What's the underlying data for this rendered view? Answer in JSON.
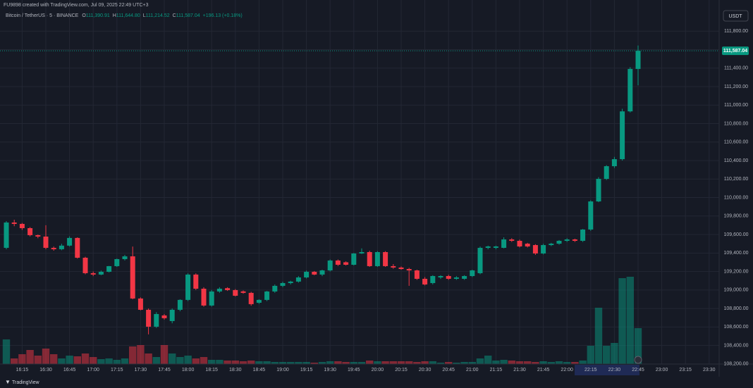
{
  "chart_data": {
    "type": "candlestick",
    "title": "FU9898 created with TradingView.com, Jul 09, 2025 22:49 UTC+3",
    "header": {
      "symbol": "Bitcoin / TetherUS · 5 · BINANCE",
      "o_label": "O",
      "o": "111,390.91",
      "h_label": "H",
      "h": "111,644.80",
      "l_label": "L",
      "l": "111,214.52",
      "c_label": "C",
      "c": "111,587.04",
      "change": "+196.13 (+0.18%)"
    },
    "currency": "USDT",
    "brand": "TradingView",
    "last_label": "111,587.04",
    "up_color": "#089981",
    "down_color": "#f23645",
    "grid": true,
    "ylim": [
      108100,
      112030
    ],
    "yticks": [
      {
        "value": 108200,
        "label": "108,200.00"
      },
      {
        "value": 108400,
        "label": "108,400.00"
      },
      {
        "value": 108600,
        "label": "108,600.00"
      },
      {
        "value": 108800,
        "label": "108,800.00"
      },
      {
        "value": 109000,
        "label": "109,000.00"
      },
      {
        "value": 109200,
        "label": "109,200.00"
      },
      {
        "value": 109400,
        "label": "109,400.00"
      },
      {
        "value": 109600,
        "label": "109,600.00"
      },
      {
        "value": 109800,
        "label": "109,800.00"
      },
      {
        "value": 110000,
        "label": "110,000.00"
      },
      {
        "value": 110200,
        "label": "110,200.00"
      },
      {
        "value": 110400,
        "label": "110,400.00"
      },
      {
        "value": 110600,
        "label": "110,600.00"
      },
      {
        "value": 110800,
        "label": "110,800.00"
      },
      {
        "value": 111000,
        "label": "111,000.00"
      },
      {
        "value": 111200,
        "label": "111,200.00"
      },
      {
        "value": 111400,
        "label": "111,400.00"
      },
      {
        "value": 111600,
        "label": "111,600.00"
      },
      {
        "value": 111800,
        "label": "111,800.00"
      }
    ],
    "xticks": [
      "16:15",
      "16:30",
      "16:45",
      "17:00",
      "17:15",
      "17:30",
      "17:45",
      "18:00",
      "18:15",
      "18:30",
      "18:45",
      "19:00",
      "19:15",
      "19:30",
      "19:45",
      "20:00",
      "20:15",
      "20:30",
      "20:45",
      "21:00",
      "21:15",
      "21:30",
      "21:45",
      "22:00",
      "22:15",
      "22:30",
      "22:45",
      "23:00",
      "23:15",
      "23:30"
    ],
    "ohlc": [
      [
        109456,
        109745,
        109440,
        109730
      ],
      [
        109730,
        109760,
        109690,
        109715
      ],
      [
        109715,
        109725,
        109650,
        109669
      ],
      [
        109669,
        109680,
        109580,
        109593
      ],
      [
        109593,
        109600,
        109560,
        109578
      ],
      [
        109578,
        109700,
        109440,
        109456
      ],
      [
        109456,
        109470,
        109425,
        109441
      ],
      [
        109441,
        109500,
        109430,
        109480
      ],
      [
        109480,
        109580,
        109470,
        109563
      ],
      [
        109563,
        109570,
        109340,
        109349
      ],
      [
        109349,
        109360,
        109170,
        109182
      ],
      [
        109182,
        109200,
        109150,
        109167
      ],
      [
        109167,
        109210,
        109160,
        109197
      ],
      [
        109197,
        109260,
        109190,
        109258
      ],
      [
        109258,
        109340,
        109250,
        109334
      ],
      [
        109334,
        109380,
        109320,
        109364
      ],
      [
        109364,
        109470,
        108900,
        108908
      ],
      [
        108908,
        108920,
        108780,
        108786
      ],
      [
        108786,
        108800,
        108520,
        108603
      ],
      [
        108603,
        108760,
        108590,
        108740
      ],
      [
        108725,
        108740,
        108680,
        108695
      ],
      [
        108664,
        108800,
        108640,
        108786
      ],
      [
        108786,
        108900,
        108770,
        108893
      ],
      [
        108893,
        109180,
        108880,
        109167
      ],
      [
        109167,
        109180,
        109000,
        109014
      ],
      [
        109014,
        109030,
        108820,
        108832
      ],
      [
        108832,
        109000,
        108820,
        108984
      ],
      [
        108984,
        109030,
        108970,
        109014
      ],
      [
        109020,
        109030,
        108990,
        108999
      ],
      [
        108999,
        109010,
        108930,
        108938
      ],
      [
        108985,
        108995,
        108960,
        108969
      ],
      [
        108969,
        108980,
        108830,
        108847
      ],
      [
        108862,
        108900,
        108850,
        108893
      ],
      [
        108893,
        108990,
        108880,
        108984
      ],
      [
        108984,
        109060,
        108970,
        109045
      ],
      [
        109045,
        109090,
        109030,
        109075
      ],
      [
        109075,
        109100,
        109060,
        109091
      ],
      [
        109091,
        109150,
        109080,
        109136
      ],
      [
        109136,
        109210,
        109125,
        109197
      ],
      [
        109197,
        109205,
        109160,
        109167
      ],
      [
        109167,
        109220,
        109150,
        109212
      ],
      [
        109212,
        109330,
        109200,
        109319
      ],
      [
        109319,
        109330,
        109260,
        109273
      ],
      [
        109300,
        109310,
        109265,
        109273
      ],
      [
        109273,
        109400,
        109265,
        109395
      ],
      [
        109395,
        109450,
        109390,
        109410
      ],
      [
        109410,
        109425,
        109250,
        109258
      ],
      [
        109258,
        109420,
        109250,
        109410
      ],
      [
        109410,
        109420,
        109250,
        109258
      ],
      [
        109258,
        109280,
        109230,
        109243
      ],
      [
        109243,
        109255,
        109220,
        109227
      ],
      [
        109227,
        109240,
        109045,
        109212
      ],
      [
        109212,
        109220,
        109110,
        109121
      ],
      [
        109121,
        109140,
        109050,
        109060
      ],
      [
        109075,
        109160,
        109060,
        109151
      ],
      [
        109136,
        109160,
        109120,
        109151
      ],
      [
        109151,
        109165,
        109110,
        109121
      ],
      [
        109121,
        109150,
        109110,
        109136
      ],
      [
        109121,
        109160,
        109110,
        109151
      ],
      [
        109151,
        109220,
        109140,
        109212
      ],
      [
        109182,
        109470,
        109170,
        109456
      ],
      [
        109456,
        109480,
        109440,
        109471
      ],
      [
        109456,
        109480,
        109440,
        109471
      ],
      [
        109456,
        109570,
        109450,
        109547
      ],
      [
        109547,
        109560,
        109520,
        109532
      ],
      [
        109532,
        109545,
        109460,
        109471
      ],
      [
        109501,
        109510,
        109460,
        109471
      ],
      [
        109486,
        109495,
        109380,
        109395
      ],
      [
        109395,
        109500,
        109385,
        109486
      ],
      [
        109486,
        109510,
        109475,
        109501
      ],
      [
        109501,
        109540,
        109490,
        109532
      ],
      [
        109532,
        109560,
        109520,
        109547
      ],
      [
        109547,
        109555,
        109520,
        109532
      ],
      [
        109532,
        109660,
        109520,
        109654
      ],
      [
        109654,
        109970,
        109640,
        109958
      ],
      [
        109958,
        110220,
        109950,
        110202
      ],
      [
        110202,
        110350,
        110190,
        110339
      ],
      [
        110339,
        110440,
        110320,
        110415
      ],
      [
        110415,
        110960,
        110400,
        110932
      ],
      [
        110932,
        111410,
        110920,
        111390.91
      ],
      [
        111390.91,
        111644.8,
        111214.52,
        111587.04
      ]
    ],
    "volume": [
      35,
      8,
      14,
      20,
      12,
      22,
      14,
      8,
      12,
      11,
      15,
      10,
      7,
      8,
      6,
      8,
      25,
      27,
      15,
      10,
      27,
      15,
      10,
      12,
      8,
      10,
      6,
      6,
      5,
      5,
      4,
      5,
      4,
      4,
      3,
      3,
      3,
      3,
      3,
      2,
      3,
      4,
      4,
      3,
      3,
      3,
      5,
      4,
      4,
      4,
      4,
      4,
      3,
      4,
      4,
      2,
      3,
      2,
      3,
      3,
      8,
      12,
      5,
      6,
      5,
      4,
      4,
      3,
      4,
      3,
      4,
      3,
      3,
      5,
      26,
      80,
      26,
      30,
      122,
      124,
      51
    ]
  }
}
